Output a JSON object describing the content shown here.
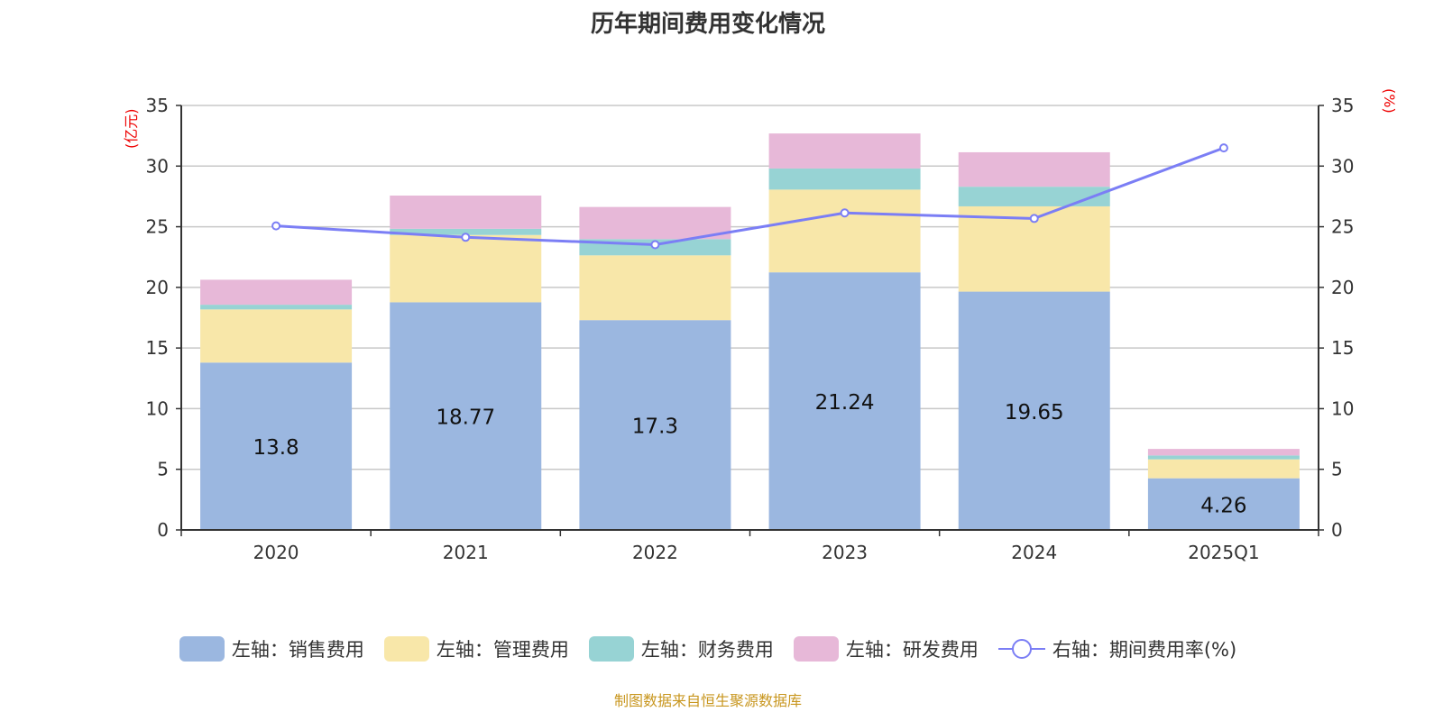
{
  "title": "历年期间费用变化情况",
  "left_unit": "(亿元)",
  "right_unit": "(%)",
  "source": "制图数据来自恒生聚源数据库",
  "chart_data": {
    "type": "bar",
    "stacked": true,
    "title": "历年期间费用变化情况",
    "categories": [
      "2020",
      "2021",
      "2022",
      "2023",
      "2024",
      "2025Q1"
    ],
    "ylim": [
      0,
      35
    ],
    "y2lim": [
      0,
      35
    ],
    "yticks": [
      0,
      5,
      10,
      15,
      20,
      25,
      30,
      35
    ],
    "series": [
      {
        "name": "左轴：销售费用",
        "axis": "left",
        "color": "#9bb7e0",
        "values": [
          13.8,
          18.77,
          17.3,
          21.24,
          19.65,
          4.26
        ],
        "labels_shown": true
      },
      {
        "name": "左轴：管理费用",
        "axis": "left",
        "color": "#f8e7a9",
        "values": [
          4.38,
          5.55,
          5.34,
          6.82,
          7.03,
          1.56
        ]
      },
      {
        "name": "左轴：财务费用",
        "axis": "left",
        "color": "#97d3d4",
        "values": [
          0.39,
          0.51,
          1.34,
          1.74,
          1.62,
          0.32
        ]
      },
      {
        "name": "左轴：研发费用",
        "axis": "left",
        "color": "#e7b8d8",
        "values": [
          2.06,
          2.74,
          2.65,
          2.89,
          2.84,
          0.54
        ]
      },
      {
        "name": "右轴：期间费用率(%)",
        "axis": "right",
        "type": "line",
        "color": "#7b7ef5",
        "values": [
          25.07,
          24.13,
          23.52,
          26.14,
          25.68,
          31.5
        ]
      }
    ],
    "grid": true,
    "legend": "bottom"
  }
}
